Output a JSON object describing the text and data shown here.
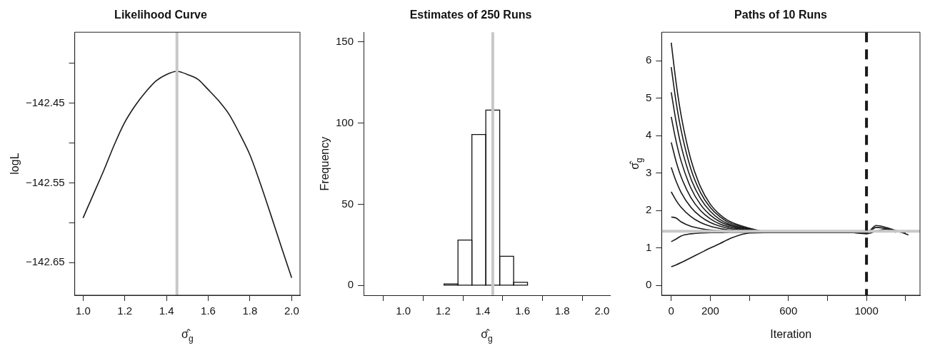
{
  "chart_data": [
    {
      "type": "line",
      "title": "Likelihood Curve",
      "xlabel": "σ̂$_{g}$",
      "ylabel": "logL",
      "x": [
        1.0,
        1.05,
        1.1,
        1.15,
        1.2,
        1.25,
        1.3,
        1.35,
        1.4,
        1.45,
        1.5,
        1.55,
        1.6,
        1.65,
        1.7,
        1.75,
        1.8,
        1.85,
        1.9,
        1.95,
        2.0
      ],
      "series": [
        {
          "color": "#1a1a1a",
          "values": [
            -142.594,
            -142.564,
            -142.534,
            -142.502,
            -142.474,
            -142.453,
            -142.436,
            -142.422,
            -142.414,
            -142.41,
            -142.414,
            -142.42,
            -142.433,
            -142.447,
            -142.464,
            -142.488,
            -142.515,
            -142.551,
            -142.59,
            -142.63,
            -142.669
          ]
        }
      ],
      "xlim": [
        0.96,
        2.04
      ],
      "xticks": [
        {
          "value": 1.0,
          "label": "1.0"
        },
        1.2,
        1.4,
        1.6,
        1.8,
        {
          "value": 2.0,
          "label": "2.0"
        }
      ],
      "ylim": [
        -142.691,
        -142.361
      ],
      "yticks": [
        {
          "value": -142.65,
          "label": "−142.65"
        },
        {
          "value": -142.6,
          "label": null
        },
        {
          "value": -142.55,
          "label": "−142.55"
        },
        {
          "value": -142.5,
          "label": null
        },
        {
          "value": -142.45,
          "label": "−142.45"
        },
        {
          "value": -142.4,
          "label": null
        }
      ],
      "ref_lines": [
        {
          "axis": "x",
          "value": 1.45,
          "color": "#c8c8c8"
        }
      ]
    },
    {
      "type": "histogram",
      "title": "Estimates of 250 Runs",
      "xlabel": "σ̂$_{g}$",
      "ylabel": "Frequency",
      "bins": [
        1.205,
        1.275,
        1.345,
        1.415,
        1.485,
        1.555,
        1.625
      ],
      "values": [
        1,
        28,
        93,
        108,
        18,
        2
      ],
      "color": "#ffffff",
      "xlim": [
        0.8,
        2.04
      ],
      "xticks": [
        {
          "value": 1.0,
          "label": "1.0"
        },
        1.2,
        1.4,
        1.6,
        1.8,
        {
          "value": 2.0,
          "label": "2.0"
        }
      ],
      "ylim": [
        -6,
        156
      ],
      "yticks": [
        0,
        50,
        100,
        150
      ],
      "ref_lines": [
        {
          "axis": "x",
          "value": 1.45,
          "color": "#c8c8c8"
        }
      ]
    },
    {
      "type": "line",
      "title": "Paths of 10 Runs",
      "xlabel": "Iteration",
      "ylabel": "σ̂$_{g}$",
      "x": [
        0,
        25,
        50,
        100,
        150,
        200,
        250,
        300,
        400,
        500,
        600,
        700,
        800,
        900,
        1000
      ],
      "series": [
        {
          "color": "#1a1a1a",
          "x": [
            0,
            25,
            50,
            100,
            150,
            200,
            250,
            300,
            400,
            500,
            600,
            700,
            800,
            900,
            1000,
            1050,
            1100,
            1150,
            1215
          ],
          "values": [
            6.48,
            5.41,
            4.56,
            3.37,
            2.63,
            2.17,
            1.89,
            1.71,
            1.53,
            1.43,
            1.42,
            1.44,
            1.42,
            1.43,
            1.41,
            1.6,
            1.55,
            1.47,
            1.35
          ]
        },
        {
          "color": "#1a1a1a",
          "x": [
            0,
            25,
            50,
            100,
            150,
            200,
            250,
            300,
            400,
            500,
            600,
            700,
            800,
            900,
            1000,
            1050,
            1100,
            1150,
            1200
          ],
          "values": [
            5.83,
            4.89,
            4.16,
            3.12,
            2.48,
            2.08,
            1.83,
            1.67,
            1.52,
            1.42,
            1.43,
            1.41,
            1.43,
            1.42,
            1.4,
            1.55,
            1.52,
            1.45,
            1.4
          ]
        },
        {
          "color": "#1a1a1a",
          "x": [
            0,
            25,
            50,
            100,
            150,
            200,
            250,
            300,
            400,
            500,
            600,
            700,
            800,
            900,
            1000,
            1050,
            1100,
            1150
          ],
          "values": [
            5.16,
            4.37,
            3.74,
            2.86,
            2.32,
            1.98,
            1.76,
            1.63,
            1.5,
            1.41,
            1.42,
            1.43,
            1.41,
            1.42,
            1.38,
            1.45,
            1.5,
            1.42
          ]
        },
        {
          "color": "#1a1a1a",
          "values": [
            4.5,
            3.85,
            3.33,
            2.61,
            2.16,
            1.88,
            1.7,
            1.6,
            1.49,
            1.42,
            1.41,
            1.42,
            1.42,
            1.41,
            1.42
          ]
        },
        {
          "color": "#1a1a1a",
          "values": [
            3.82,
            3.31,
            2.91,
            2.35,
            2.0,
            1.78,
            1.64,
            1.56,
            1.47,
            1.41,
            1.42,
            1.41,
            1.43,
            1.42,
            1.41
          ]
        },
        {
          "color": "#1a1a1a",
          "values": [
            3.15,
            2.78,
            2.49,
            2.09,
            1.84,
            1.68,
            1.58,
            1.52,
            1.46,
            1.42,
            1.41,
            1.42,
            1.42,
            1.43,
            1.42
          ]
        },
        {
          "color": "#1a1a1a",
          "values": [
            2.5,
            2.27,
            2.09,
            1.84,
            1.68,
            1.58,
            1.52,
            1.48,
            1.44,
            1.42,
            1.42,
            1.41,
            1.42,
            1.41,
            1.42
          ]
        },
        {
          "color": "#1a1a1a",
          "values": [
            1.83,
            1.8,
            1.7,
            1.58,
            1.52,
            1.48,
            1.46,
            1.44,
            1.43,
            1.41,
            1.42,
            1.42,
            1.41,
            1.42,
            1.41
          ]
        },
        {
          "color": "#1a1a1a",
          "values": [
            1.17,
            1.24,
            1.32,
            1.38,
            1.4,
            1.41,
            1.41,
            1.42,
            1.42,
            1.41,
            1.42,
            1.42,
            1.41,
            1.42,
            1.41
          ]
        },
        {
          "color": "#1a1a1a",
          "values": [
            0.5,
            0.55,
            0.61,
            0.74,
            0.87,
            1.0,
            1.12,
            1.25,
            1.4,
            1.41,
            1.42,
            1.41,
            1.42,
            1.41,
            1.42
          ]
        }
      ],
      "xlim": [
        -49,
        1274
      ],
      "xticks": [
        0,
        200,
        {
          "value": 400,
          "label": null
        },
        600,
        {
          "value": 800,
          "label": null
        },
        1000,
        {
          "value": 1200,
          "label": null
        }
      ],
      "ylim": [
        -0.26,
        6.76
      ],
      "yticks": [
        0,
        1,
        2,
        3,
        4,
        5,
        6
      ],
      "ref_lines": [
        {
          "axis": "y",
          "value": 1.45,
          "color": "#c8c8c8"
        },
        {
          "axis": "x",
          "value": 1000,
          "color": "#1a1a1a",
          "line_style": "dashed"
        }
      ]
    }
  ]
}
